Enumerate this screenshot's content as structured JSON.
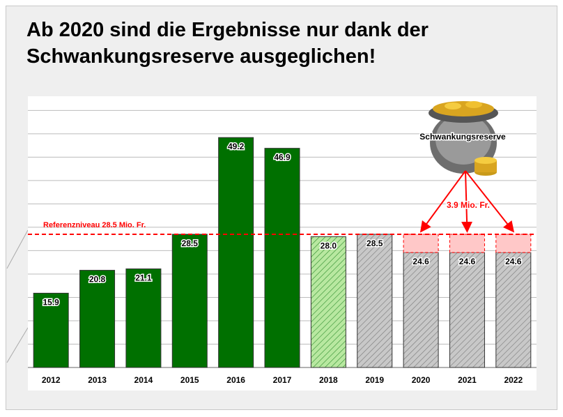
{
  "chart_data": {
    "type": "bar",
    "title": "Ab 2020 sind die Ergebnisse nur dank der Schwankungsreserve ausgeglichen!",
    "categories": [
      "2012",
      "2013",
      "2014",
      "2015",
      "2016",
      "2017",
      "2018",
      "2019",
      "2020",
      "2021",
      "2022"
    ],
    "values": [
      15.9,
      20.8,
      21.1,
      28.5,
      49.2,
      46.9,
      28.0,
      28.5,
      24.6,
      24.6,
      24.6
    ],
    "value_labels": [
      "15.9",
      "20.8",
      "21.1",
      "28.5",
      "49.2",
      "46.9",
      "28.0",
      "28.5",
      "24.6",
      "24.6",
      "24.6"
    ],
    "colors": [
      "#007000",
      "#007000",
      "#007000",
      "#007000",
      "#007000",
      "#007000",
      "#b8e8a0",
      "#c8c8c8",
      "#c8c8c8",
      "#c8c8c8",
      "#c8c8c8"
    ],
    "hatched": [
      false,
      false,
      false,
      false,
      false,
      false,
      true,
      true,
      true,
      true,
      true
    ],
    "reserve": {
      "name": "Schwankungsreserve",
      "label": "3.9 Mio. Fr.",
      "color": "#ff0000",
      "values": [
        null,
        null,
        null,
        null,
        null,
        null,
        null,
        null,
        3.9,
        3.9,
        3.9
      ]
    },
    "reference": {
      "value": 28.5,
      "label": "Referenzniveau 28.5 Mio. Fr.",
      "color": "#ff0000"
    },
    "ylim": [
      0,
      55.5
    ],
    "yticks": [
      0,
      5,
      10,
      15,
      20,
      25,
      30,
      35,
      40,
      45,
      50,
      55
    ],
    "grid": true
  }
}
